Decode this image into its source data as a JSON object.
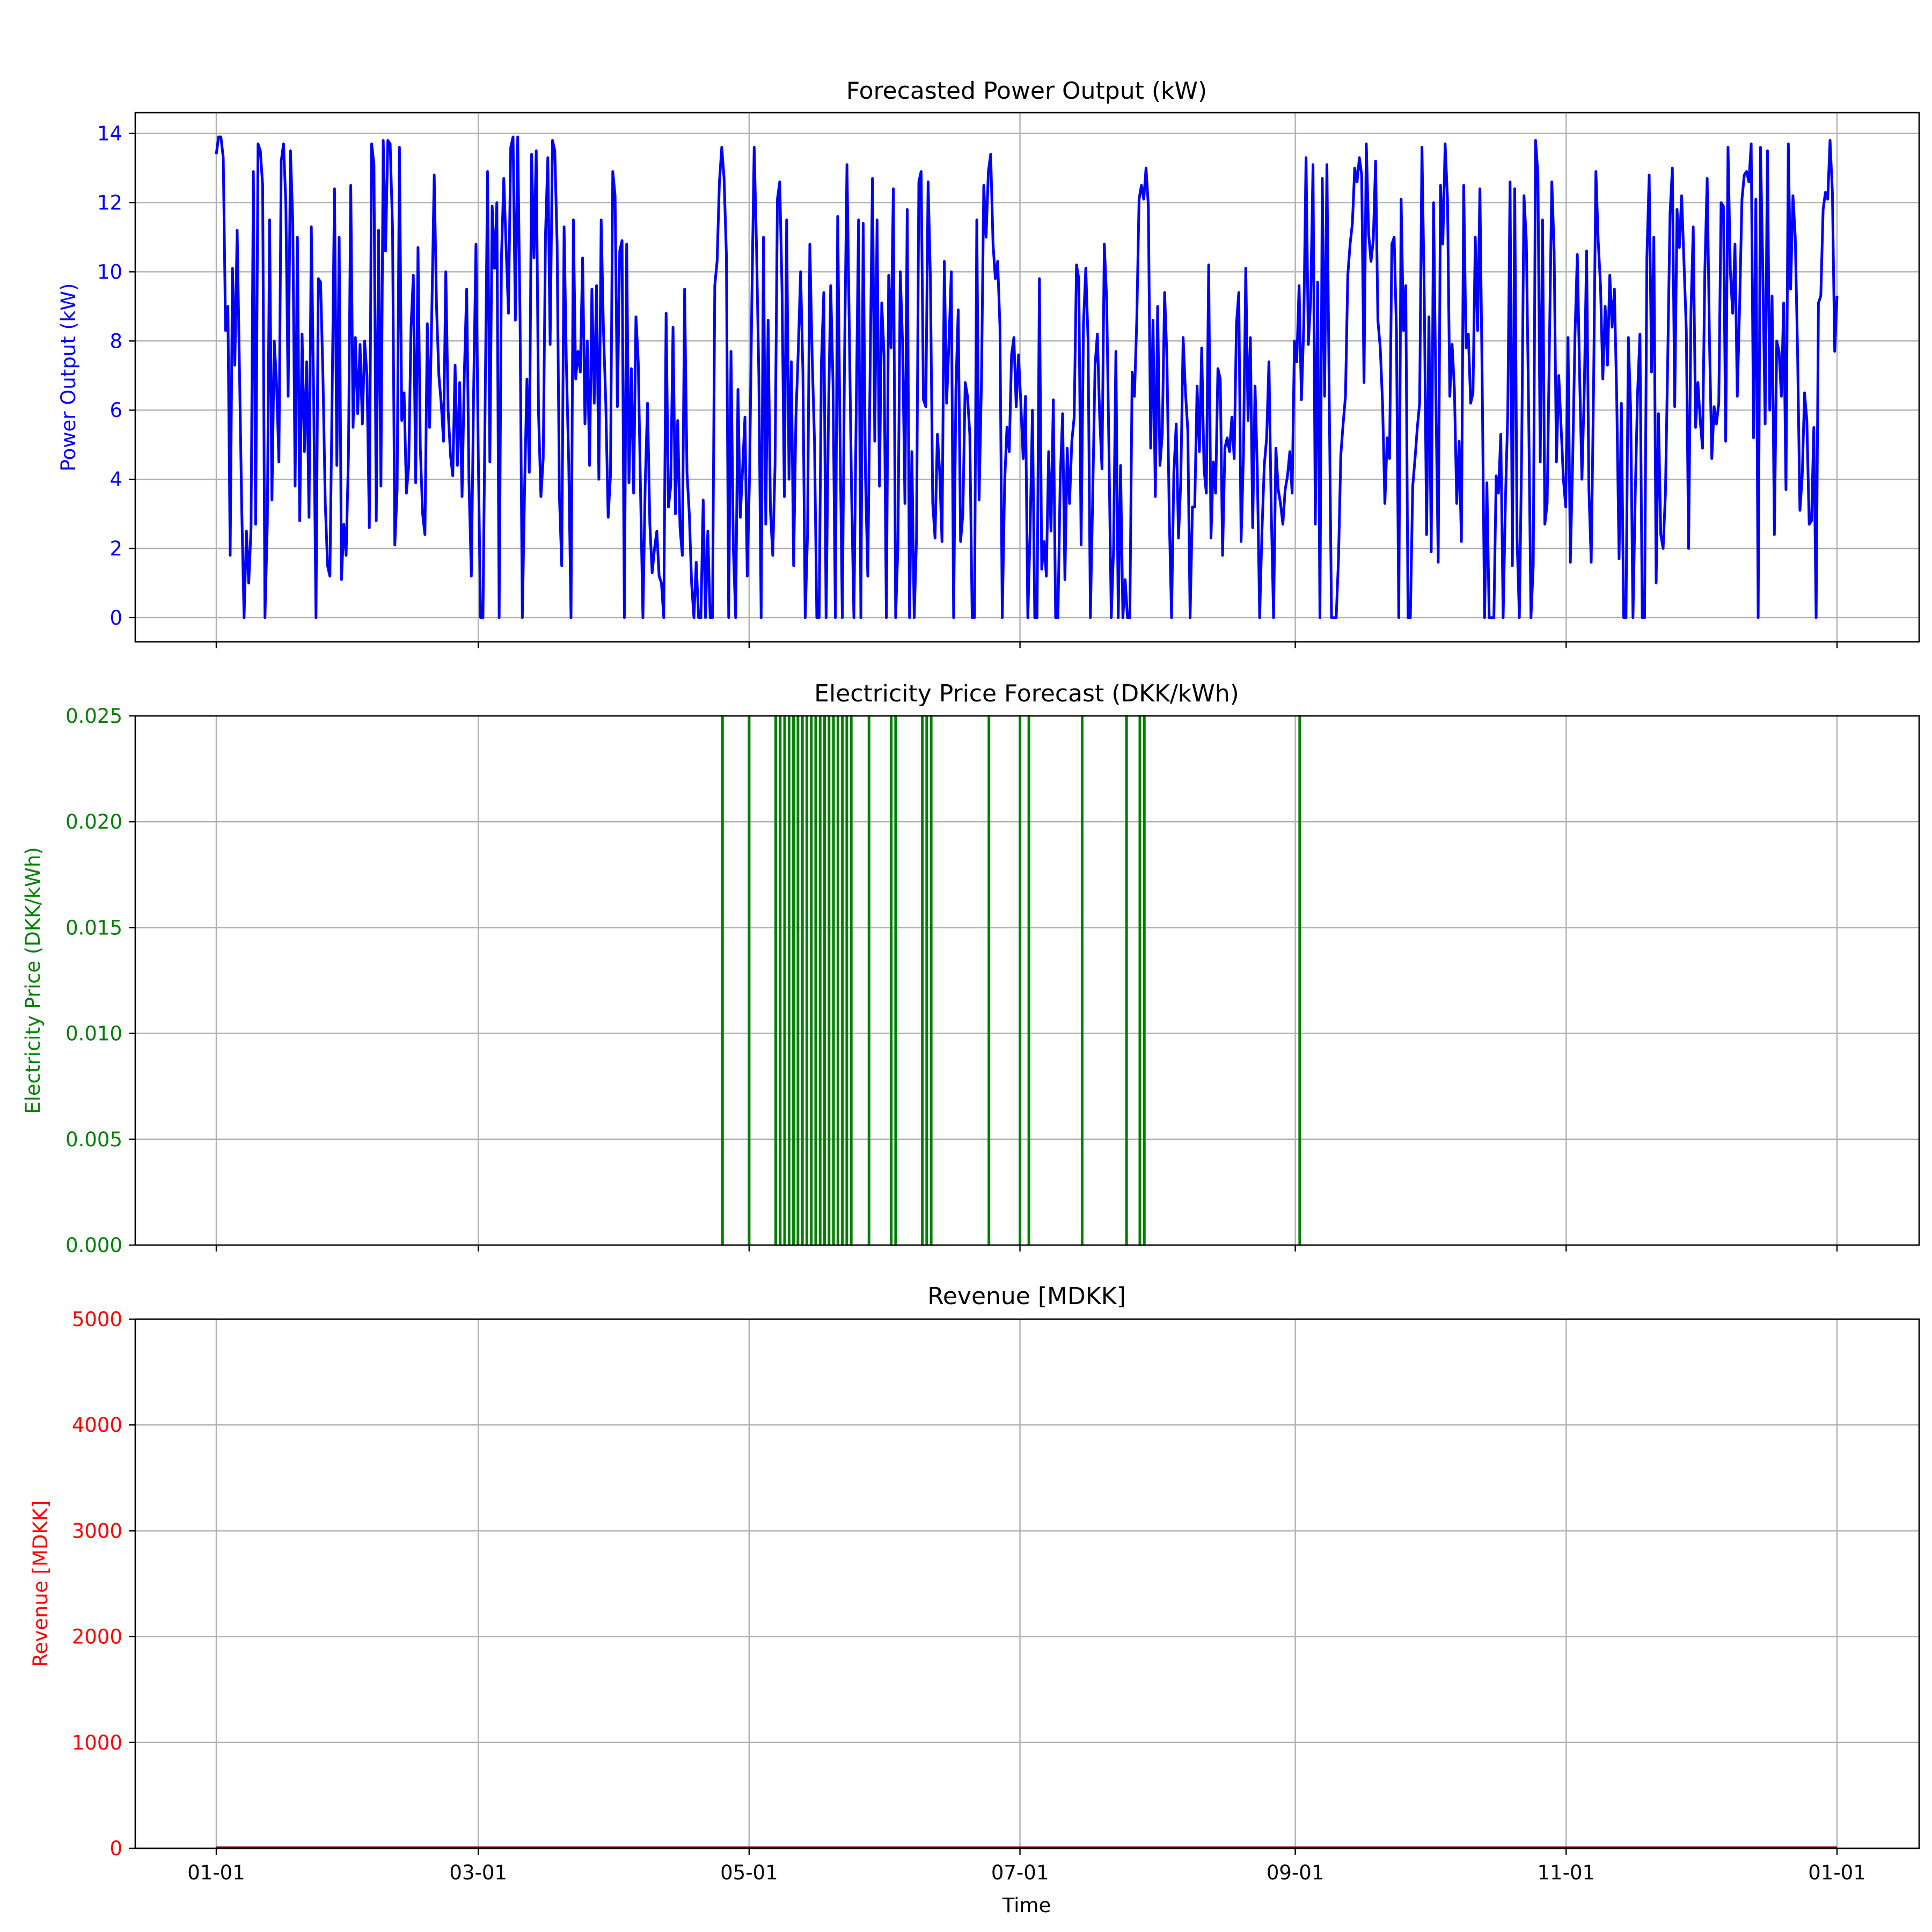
{
  "figure": {
    "xlabel": "Time",
    "x_tick_labels": [
      "01-01",
      "03-01",
      "05-01",
      "07-01",
      "09-01",
      "11-01",
      "01-01"
    ]
  },
  "colors": {
    "power": "#0000ff",
    "price": "#008000",
    "revenue": "#ff0000",
    "revenue_line": "#8b0000"
  },
  "chart_data": [
    {
      "type": "line",
      "title": "Forecasted Power Output (kW)",
      "ylabel": "Power Output (kW)",
      "ylim": [
        -0.7,
        14.6
      ],
      "yticks": [
        0,
        2,
        4,
        6,
        8,
        10,
        12,
        14
      ],
      "grid": true,
      "x_start": "01-01",
      "x_end": "01-01",
      "series": [
        {
          "values": [
            13.4,
            13.9,
            13.9,
            13.3,
            8.3,
            9.0,
            1.8,
            10.1,
            7.3,
            11.2,
            7.2,
            3.1,
            0.0,
            2.5,
            1.0,
            2.6,
            12.9,
            2.7,
            13.7,
            13.5,
            12.5,
            0.0,
            2.7,
            11.5,
            3.4,
            8.0,
            6.8,
            4.5,
            13.2,
            13.7,
            12.0,
            6.4,
            13.5,
            11.4,
            3.8,
            11.0,
            2.8,
            8.2,
            4.8,
            7.4,
            2.9,
            11.3,
            6.4,
            0.0,
            9.8,
            9.7,
            7.0,
            3.3,
            1.5,
            1.2,
            6.6,
            12.4,
            4.4,
            11.0,
            1.1,
            2.7,
            1.8,
            4.7,
            12.5,
            5.5,
            8.1,
            5.9,
            7.9,
            5.6,
            8.0,
            7.0,
            2.6,
            13.7,
            13.1,
            2.8,
            11.2,
            3.8,
            13.8,
            10.6,
            13.8,
            13.7,
            11.3,
            2.1,
            3.7,
            13.6,
            5.7,
            6.5,
            3.6,
            4.4,
            8.4,
            9.9,
            3.9,
            10.7,
            4.9,
            3.0,
            2.4,
            8.5,
            5.5,
            9.0,
            12.8,
            9.0,
            7.0,
            6.2,
            5.1,
            10.0,
            6.0,
            4.7,
            4.1,
            7.3,
            4.4,
            6.8,
            3.5,
            7.1,
            9.5,
            3.9,
            1.2,
            6.6,
            10.8,
            4.7,
            0.0,
            0.0,
            6.5,
            12.9,
            4.5,
            11.9,
            10.1,
            12.0,
            0.0,
            10.4,
            12.7,
            10.7,
            8.8,
            13.6,
            13.9,
            8.6,
            13.9,
            8.7,
            0.0,
            3.8,
            6.9,
            4.2,
            13.4,
            10.4,
            13.5,
            5.9,
            3.5,
            4.6,
            11.1,
            13.3,
            7.9,
            13.8,
            13.5,
            10.8,
            3.5,
            1.5,
            11.3,
            7.3,
            4.5,
            0.0,
            11.5,
            6.9,
            7.7,
            7.1,
            10.4,
            5.6,
            8.0,
            4.4,
            9.5,
            6.2,
            9.6,
            4.0,
            11.5,
            8.3,
            6.2,
            2.9,
            4.1,
            12.9,
            12.2,
            6.1,
            10.6,
            10.9,
            0.0,
            10.8,
            3.9,
            7.2,
            3.6,
            8.7,
            7.4,
            3.6,
            0.0,
            3.9,
            6.2,
            2.7,
            1.3,
            2.0,
            2.5,
            1.2,
            1.0,
            0.0,
            8.8,
            3.2,
            3.8,
            8.4,
            3.0,
            5.7,
            2.6,
            1.8,
            9.5,
            4.2,
            3.0,
            1.0,
            0.0,
            1.6,
            0.0,
            0.0,
            3.4,
            0.0,
            2.5,
            0.0,
            0.0,
            9.6,
            10.3,
            12.6,
            13.6,
            12.7,
            10.5,
            0.0,
            7.7,
            2.0,
            0.0,
            6.6,
            2.9,
            4.3,
            5.8,
            1.2,
            4.1,
            9.2,
            13.6,
            10.7,
            7.0,
            0.0,
            11.0,
            2.7,
            8.6,
            3.1,
            1.8,
            4.4,
            12.1,
            12.6,
            9.5,
            3.5,
            11.5,
            4.0,
            7.4,
            1.5,
            5.8,
            7.7,
            10.0,
            7.1,
            0.0,
            2.4,
            10.8,
            7.5,
            5.1,
            0.0,
            0.0,
            7.4,
            9.4,
            0.0,
            5.7,
            9.6,
            6.8,
            0.0,
            11.6,
            5.4,
            0.0,
            7.7,
            13.1,
            8.4,
            3.6,
            0.0,
            5.9,
            11.5,
            0.0,
            11.4,
            4.1,
            1.2,
            7.2,
            12.7,
            5.1,
            11.5,
            3.8,
            9.1,
            7.6,
            0.0,
            9.9,
            7.8,
            12.4,
            0.0,
            2.1,
            10.0,
            7.9,
            3.3,
            11.8,
            0.0,
            4.8,
            0.0,
            2.3,
            12.6,
            12.9,
            6.3,
            6.1,
            12.6,
            9.8,
            3.3,
            2.3,
            5.3,
            4.2,
            2.2,
            10.3,
            6.2,
            8.0,
            10.0,
            0.0,
            6.6,
            8.9,
            2.2,
            3.0,
            6.8,
            6.4,
            5.3,
            0.0,
            0.0,
            11.5,
            3.4,
            6.8,
            12.5,
            11.0,
            12.9,
            13.4,
            10.8,
            9.8,
            10.3,
            8.4,
            0.0,
            3.9,
            5.5,
            4.8,
            7.6,
            8.1,
            6.1,
            7.6,
            6.2,
            4.6,
            6.4,
            0.0,
            2.5,
            6.0,
            0.0,
            0.0,
            9.8,
            1.4,
            2.2,
            1.2,
            4.8,
            2.5,
            6.3,
            0.0,
            0.0,
            4.0,
            5.9,
            1.1,
            4.9,
            3.3,
            5.1,
            5.8,
            10.2,
            9.8,
            2.1,
            8.5,
            10.1,
            8.0,
            0.0,
            3.5,
            7.3,
            8.2,
            5.8,
            4.3,
            10.8,
            9.2,
            4.8,
            0.0,
            2.0,
            7.7,
            0.0,
            4.4,
            0.0,
            1.1,
            0.0,
            0.0,
            7.1,
            6.4,
            8.6,
            12.1,
            12.5,
            12.1,
            13.0,
            11.9,
            4.9,
            8.6,
            3.5,
            9.0,
            4.4,
            5.3,
            9.4,
            7.5,
            3.0,
            0.0,
            4.2,
            5.6,
            2.3,
            4.0,
            8.1,
            6.5,
            5.4,
            0.0,
            3.2,
            3.2,
            6.7,
            4.8,
            7.8,
            4.3,
            3.6,
            10.2,
            2.3,
            4.5,
            3.6,
            7.2,
            6.9,
            1.8,
            4.9,
            5.2,
            4.8,
            5.8,
            4.6,
            8.5,
            9.4,
            2.2,
            4.7,
            10.1,
            5.7,
            8.1,
            2.6,
            6.7,
            4.2,
            0.0,
            2.5,
            4.4,
            5.2,
            7.4,
            3.1,
            0.0,
            4.9,
            3.7,
            3.3,
            2.7,
            3.7,
            4.1,
            4.8,
            3.6,
            8.0,
            7.4,
            9.6,
            6.3,
            8.4,
            13.3,
            7.9,
            9.2,
            13.1,
            2.7,
            9.7,
            0.0,
            12.7,
            6.4,
            13.1,
            6.4,
            0.0,
            0.0,
            0.0,
            1.7,
            4.7,
            5.6,
            6.4,
            9.9,
            10.8,
            11.4,
            13.0,
            12.6,
            13.3,
            12.8,
            6.8,
            13.7,
            11.1,
            10.3,
            10.9,
            13.2,
            8.6,
            7.8,
            6.2,
            3.3,
            5.2,
            4.6,
            10.8,
            11.0,
            8.3,
            0.0,
            12.1,
            8.3,
            9.6,
            0.0,
            0.0,
            3.8,
            4.6,
            5.5,
            6.2,
            13.6,
            9.2,
            2.4,
            8.7,
            1.9,
            12.0,
            6.4,
            1.6,
            12.5,
            10.8,
            13.7,
            12.1,
            6.4,
            7.9,
            6.6,
            3.3,
            5.1,
            2.2,
            12.5,
            7.8,
            8.2,
            6.2,
            6.5,
            11.0,
            8.3,
            12.4,
            6.6,
            0.0,
            3.9,
            0.0,
            0.0,
            0.0,
            4.1,
            3.6,
            5.3,
            0.0,
            3.4,
            5.9,
            12.6,
            1.5,
            12.4,
            2.3,
            0.0,
            4.8,
            12.2,
            10.9,
            6.0,
            0.0,
            1.5,
            13.8,
            12.8,
            4.5,
            11.5,
            2.7,
            3.3,
            8.1,
            12.6,
            10.6,
            4.5,
            7.0,
            5.5,
            4.0,
            3.2,
            8.1,
            1.6,
            4.6,
            8.2,
            10.5,
            7.0,
            4.0,
            6.6,
            10.6,
            3.7,
            1.6,
            6.7,
            12.9,
            10.9,
            9.6,
            6.9,
            9.0,
            7.3,
            9.9,
            8.4,
            9.5,
            6.3,
            1.7,
            6.2,
            0.0,
            0.0,
            8.1,
            6.0,
            0.0,
            3.6,
            6.5,
            8.2,
            0.0,
            0.0,
            10.4,
            12.8,
            7.1,
            11.0,
            1.0,
            5.9,
            2.4,
            2.0,
            3.6,
            7.5,
            11.7,
            13.0,
            6.1,
            11.8,
            10.7,
            12.2,
            10.3,
            8.3,
            2.0,
            8.8,
            11.3,
            5.5,
            6.8,
            5.7,
            4.9,
            10.0,
            12.7,
            8.0,
            4.6,
            6.1,
            5.6,
            6.2,
            12.0,
            11.9,
            5.1,
            13.6,
            10.0,
            8.8,
            10.8,
            6.4,
            9.0,
            12.1,
            12.8,
            12.9,
            12.6,
            13.7,
            5.2,
            12.1,
            0.0,
            13.6,
            10.1,
            5.6,
            13.5,
            6.0,
            9.3,
            2.4,
            8.0,
            7.7,
            6.4,
            9.1,
            3.7,
            13.7,
            9.5,
            12.2,
            11.0,
            7.6,
            3.1,
            4.1,
            6.5,
            5.7,
            2.7,
            2.8,
            5.5,
            0.0,
            9.1,
            9.3,
            11.8,
            12.3,
            12.1,
            13.8,
            12.3,
            7.7,
            9.3
          ]
        }
      ]
    },
    {
      "type": "line",
      "title": "Electricity Price Forecast (DKK/kWh)",
      "ylabel": "Electricity Price (DKK/kWh)",
      "ylim": [
        0.0,
        0.025
      ],
      "yticks": [
        0.0,
        0.005,
        0.01,
        0.015,
        0.02,
        0.025
      ],
      "grid": true,
      "series": [
        {
          "spike_days": [
            114,
            120,
            126,
            127,
            128,
            129,
            130,
            131,
            132,
            133,
            134,
            135,
            136,
            137,
            138,
            139,
            140,
            141,
            142,
            143,
            147,
            152,
            153,
            159,
            160,
            161,
            174,
            181,
            183,
            195,
            205,
            208,
            209,
            244
          ],
          "spike_value": 0.025,
          "baseline": 0.0
        }
      ]
    },
    {
      "type": "line",
      "title": "Revenue [MDKK]",
      "ylabel": "Revenue [MDKK]",
      "ylim": [
        0,
        5000
      ],
      "yticks": [
        0,
        1000,
        2000,
        3000,
        4000,
        5000
      ],
      "grid": true,
      "series": [
        {
          "values": [
            0,
            0
          ]
        }
      ]
    }
  ]
}
